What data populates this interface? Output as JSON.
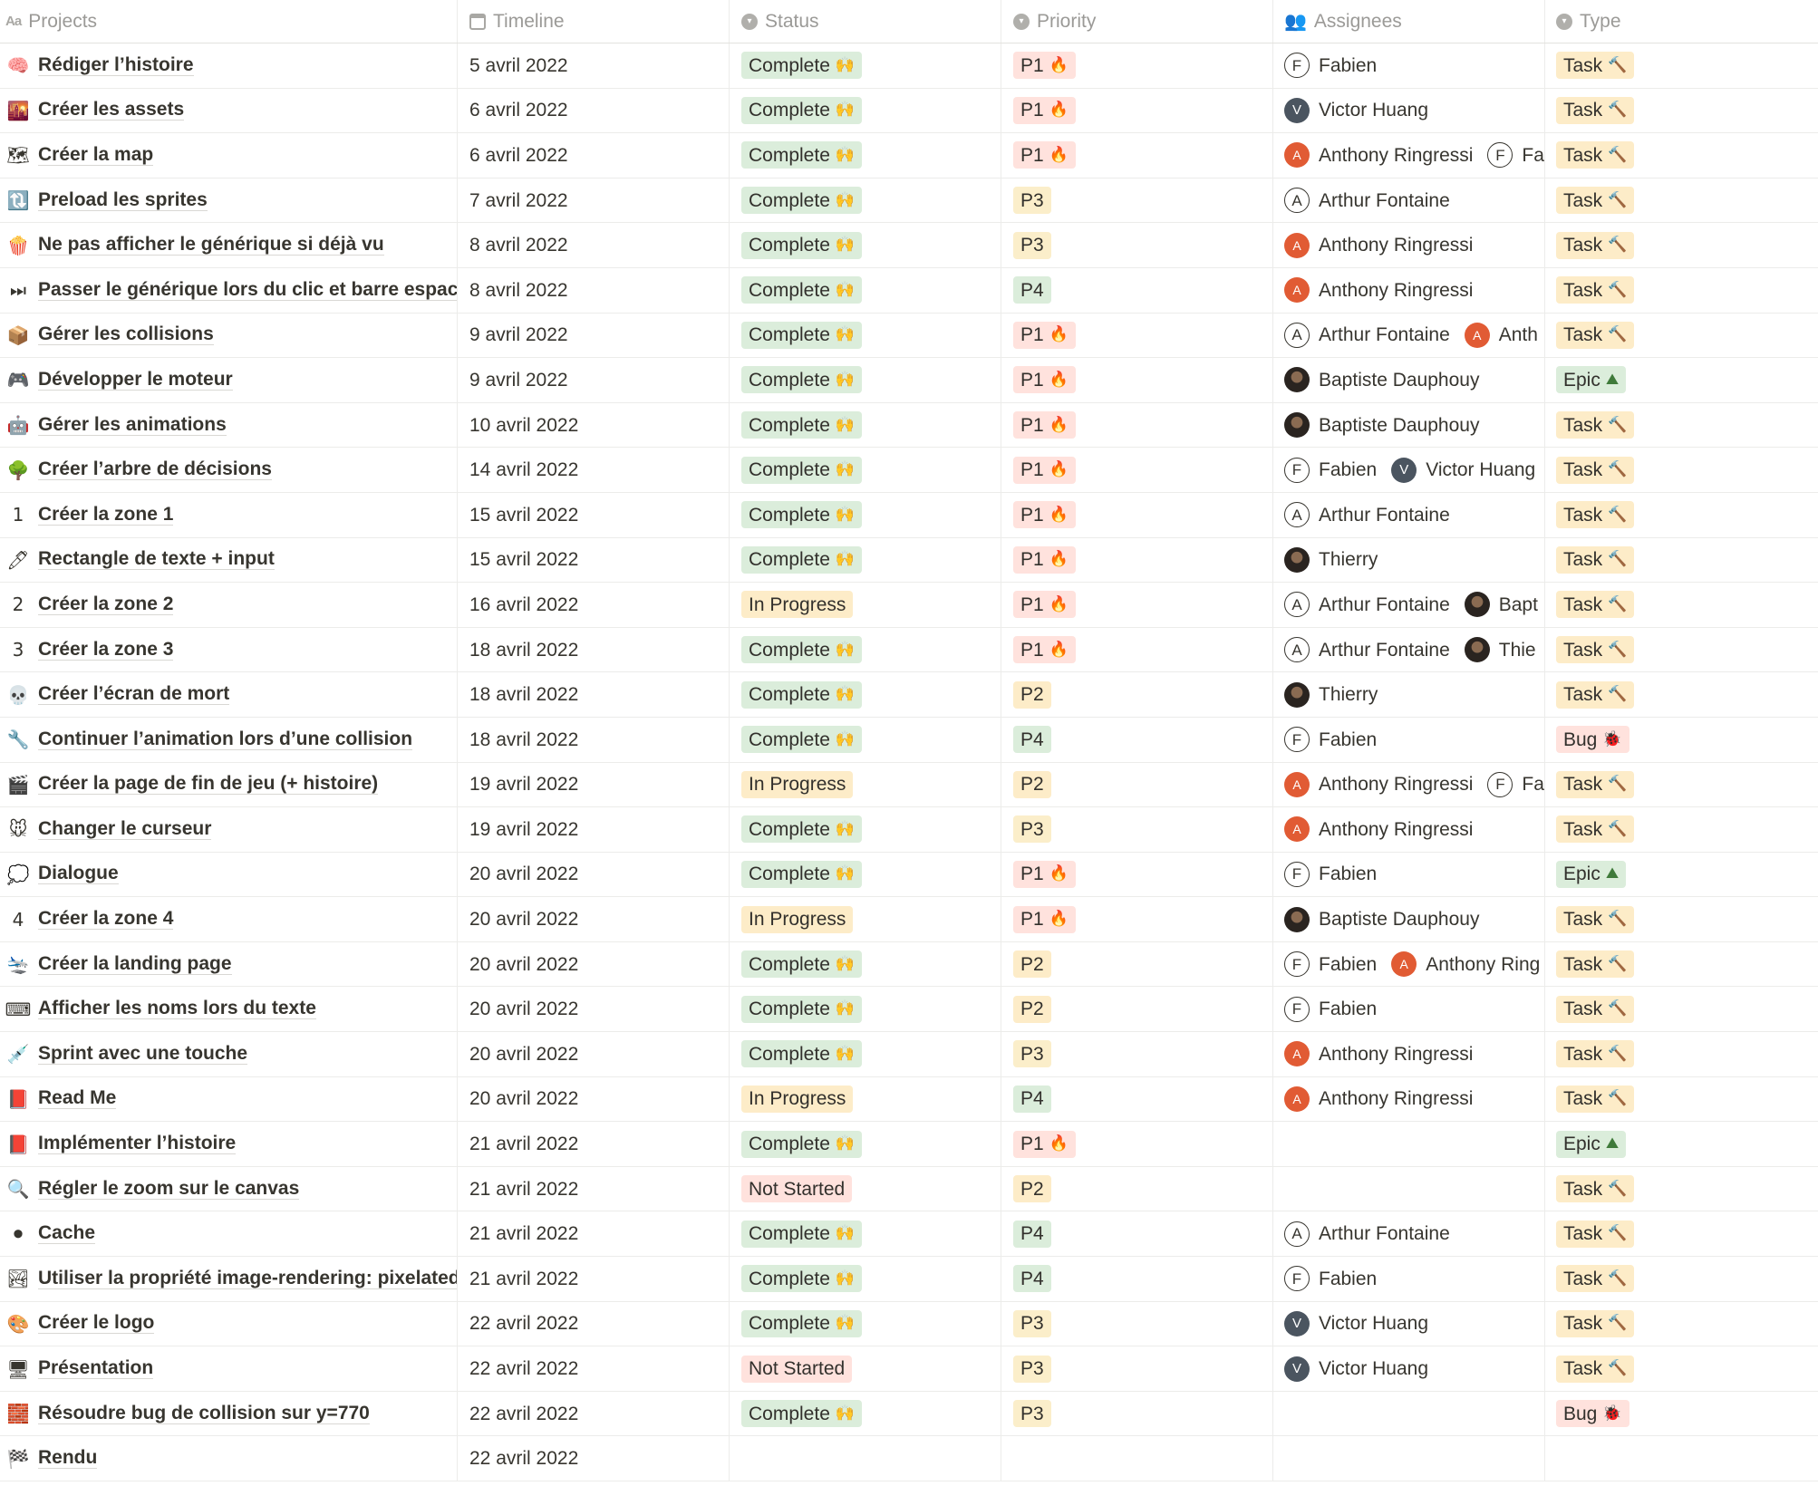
{
  "colors": {
    "status_complete": "#dbeddb",
    "status_in_progress": "#fdecc8",
    "status_not_started": "#ffe2dd",
    "priority_p1": "#ffe2dd",
    "priority_p2": "#fdecc8",
    "priority_p3": "#fbeeca",
    "priority_p4": "#dbeddb",
    "type_task": "#fdecc8",
    "type_epic": "#dbeddb",
    "type_bug": "#ffe2dd"
  },
  "columns": [
    {
      "key": "projects",
      "label": "Projects",
      "icon": "text-property-icon"
    },
    {
      "key": "timeline",
      "label": "Timeline",
      "icon": "calendar-icon"
    },
    {
      "key": "status",
      "label": "Status",
      "icon": "select-property-icon"
    },
    {
      "key": "priority",
      "label": "Priority",
      "icon": "select-property-icon"
    },
    {
      "key": "assignees",
      "label": "Assignees",
      "icon": "people-icon"
    },
    {
      "key": "type",
      "label": "Type",
      "icon": "select-property-icon"
    }
  ],
  "rows": [
    {
      "emoji": "brain-icon",
      "glyph": "🧠",
      "title": "Rédiger l’histoire",
      "timeline": "5 avril 2022",
      "status": "Complete",
      "priority": "P1",
      "assignees": [
        {
          "name": "Fabien",
          "initial": "F",
          "style": "letter"
        }
      ],
      "type": "Task"
    },
    {
      "emoji": "sunset-icon",
      "glyph": "🌇",
      "title": "Créer les assets",
      "timeline": "6 avril 2022",
      "status": "Complete",
      "priority": "P1",
      "assignees": [
        {
          "name": "Victor Huang",
          "initial": "V",
          "style": "slate"
        }
      ],
      "type": "Task"
    },
    {
      "emoji": "map-icon",
      "glyph": "🗺",
      "title": "Créer la map",
      "timeline": "6 avril 2022",
      "status": "Complete",
      "priority": "P1",
      "assignees": [
        {
          "name": "Anthony Ringressi",
          "initial": "A",
          "style": "orange"
        },
        {
          "name": "Fa",
          "initial": "F",
          "style": "letter"
        }
      ],
      "type": "Task"
    },
    {
      "emoji": "reload-icon",
      "glyph": "🔃",
      "title": "Preload les sprites",
      "timeline": "7 avril 2022",
      "status": "Complete",
      "priority": "P3",
      "assignees": [
        {
          "name": "Arthur Fontaine",
          "initial": "A",
          "style": "letter"
        }
      ],
      "type": "Task"
    },
    {
      "emoji": "popcorn-icon",
      "glyph": "🍿",
      "title": "Ne pas afficher le générique si déjà vu",
      "timeline": "8 avril 2022",
      "status": "Complete",
      "priority": "P3",
      "assignees": [
        {
          "name": "Anthony Ringressi",
          "initial": "A",
          "style": "orange"
        }
      ],
      "type": "Task"
    },
    {
      "emoji": "fast-forward-icon",
      "glyph": "⏭",
      "title": "Passer le générique lors du clic et barre espace",
      "timeline": "8 avril 2022",
      "status": "Complete",
      "priority": "P4",
      "assignees": [
        {
          "name": "Anthony Ringressi",
          "initial": "A",
          "style": "orange"
        }
      ],
      "type": "Task"
    },
    {
      "emoji": "package-icon",
      "glyph": "📦",
      "title": "Gérer les collisions",
      "timeline": "9 avril 2022",
      "status": "Complete",
      "priority": "P1",
      "assignees": [
        {
          "name": "Arthur Fontaine",
          "initial": "A",
          "style": "letter"
        },
        {
          "name": "Anth",
          "initial": "A",
          "style": "orange"
        }
      ],
      "type": "Task"
    },
    {
      "emoji": "gamepad-icon",
      "glyph": "🎮",
      "title": "Développer le moteur",
      "timeline": "9 avril 2022",
      "status": "Complete",
      "priority": "P1",
      "assignees": [
        {
          "name": "Baptiste Dauphouy",
          "initial": "",
          "style": "photo"
        }
      ],
      "type": "Epic"
    },
    {
      "emoji": "robot-icon",
      "glyph": "🤖",
      "title": "Gérer les animations",
      "timeline": "10 avril 2022",
      "status": "Complete",
      "priority": "P1",
      "assignees": [
        {
          "name": "Baptiste Dauphouy",
          "initial": "",
          "style": "photo"
        }
      ],
      "type": "Task"
    },
    {
      "emoji": "tree-icon",
      "glyph": "🌳",
      "title": "Créer l’arbre de décisions",
      "timeline": "14 avril 2022",
      "status": "Complete",
      "priority": "P1",
      "assignees": [
        {
          "name": "Fabien",
          "initial": "F",
          "style": "letter"
        },
        {
          "name": "Victor Huang",
          "initial": "V",
          "style": "slate"
        }
      ],
      "type": "Task"
    },
    {
      "emoji": "keycap-1-icon",
      "glyph": "1",
      "title": "Créer la zone 1",
      "timeline": "15 avril 2022",
      "status": "Complete",
      "priority": "P1",
      "assignees": [
        {
          "name": "Arthur Fontaine",
          "initial": "A",
          "style": "letter"
        }
      ],
      "type": "Task"
    },
    {
      "emoji": "pen-icon",
      "glyph": "🖊",
      "title": "Rectangle de texte + input",
      "timeline": "15 avril 2022",
      "status": "Complete",
      "priority": "P1",
      "assignees": [
        {
          "name": "Thierry",
          "initial": "",
          "style": "photo"
        }
      ],
      "type": "Task"
    },
    {
      "emoji": "keycap-2-icon",
      "glyph": "2",
      "title": "Créer la zone 2",
      "timeline": "16 avril 2022",
      "status": "In Progress",
      "priority": "P1",
      "assignees": [
        {
          "name": "Arthur Fontaine",
          "initial": "A",
          "style": "letter"
        },
        {
          "name": "Bapt",
          "initial": "",
          "style": "photo"
        }
      ],
      "type": "Task"
    },
    {
      "emoji": "keycap-3-icon",
      "glyph": "3",
      "title": "Créer la zone 3",
      "timeline": "18 avril 2022",
      "status": "Complete",
      "priority": "P1",
      "assignees": [
        {
          "name": "Arthur Fontaine",
          "initial": "A",
          "style": "letter"
        },
        {
          "name": "Thie",
          "initial": "",
          "style": "photo"
        }
      ],
      "type": "Task"
    },
    {
      "emoji": "skull-icon",
      "glyph": "💀",
      "title": "Créer l’écran de mort",
      "timeline": "18 avril 2022",
      "status": "Complete",
      "priority": "P2",
      "assignees": [
        {
          "name": "Thierry",
          "initial": "",
          "style": "photo"
        }
      ],
      "type": "Task"
    },
    {
      "emoji": "wrench-icon",
      "glyph": "🔧",
      "title": "Continuer l’animation lors d’une collision",
      "timeline": "18 avril 2022",
      "status": "Complete",
      "priority": "P4",
      "assignees": [
        {
          "name": "Fabien",
          "initial": "F",
          "style": "letter"
        }
      ],
      "type": "Bug"
    },
    {
      "emoji": "clapper-icon",
      "glyph": "🎬",
      "title": "Créer la page de fin de jeu (+ histoire)",
      "timeline": "19 avril 2022",
      "status": "In Progress",
      "priority": "P2",
      "assignees": [
        {
          "name": "Anthony Ringressi",
          "initial": "A",
          "style": "orange"
        },
        {
          "name": "Fa",
          "initial": "F",
          "style": "letter"
        }
      ],
      "type": "Task"
    },
    {
      "emoji": "mouse-icon",
      "glyph": "🐭",
      "title": "Changer le curseur",
      "timeline": "19 avril 2022",
      "status": "Complete",
      "priority": "P3",
      "assignees": [
        {
          "name": "Anthony Ringressi",
          "initial": "A",
          "style": "orange"
        }
      ],
      "type": "Task"
    },
    {
      "emoji": "speech-bubble-icon",
      "glyph": "💭",
      "title": "Dialogue",
      "timeline": "20 avril 2022",
      "status": "Complete",
      "priority": "P1",
      "assignees": [
        {
          "name": "Fabien",
          "initial": "F",
          "style": "letter"
        }
      ],
      "type": "Epic"
    },
    {
      "emoji": "keycap-4-icon",
      "glyph": "4",
      "title": "Créer la zone 4",
      "timeline": "20 avril 2022",
      "status": "In Progress",
      "priority": "P1",
      "assignees": [
        {
          "name": "Baptiste Dauphouy",
          "initial": "",
          "style": "photo"
        }
      ],
      "type": "Task"
    },
    {
      "emoji": "airplane-landing-icon",
      "glyph": "🛬",
      "title": "Créer la landing page",
      "timeline": "20 avril 2022",
      "status": "Complete",
      "priority": "P2",
      "assignees": [
        {
          "name": "Fabien",
          "initial": "F",
          "style": "letter"
        },
        {
          "name": "Anthony Ring",
          "initial": "A",
          "style": "orange"
        }
      ],
      "type": "Task"
    },
    {
      "emoji": "keyboard-icon",
      "glyph": "⌨",
      "title": "Afficher les noms lors du texte",
      "timeline": "20 avril 2022",
      "status": "Complete",
      "priority": "P2",
      "assignees": [
        {
          "name": "Fabien",
          "initial": "F",
          "style": "letter"
        }
      ],
      "type": "Task"
    },
    {
      "emoji": "syringe-icon",
      "glyph": "💉",
      "title": "Sprint avec une touche",
      "timeline": "20 avril 2022",
      "status": "Complete",
      "priority": "P3",
      "assignees": [
        {
          "name": "Anthony Ringressi",
          "initial": "A",
          "style": "orange"
        }
      ],
      "type": "Task"
    },
    {
      "emoji": "book-icon",
      "glyph": "📕",
      "title": "Read Me",
      "timeline": "20 avril 2022",
      "status": "In Progress",
      "priority": "P4",
      "assignees": [
        {
          "name": "Anthony Ringressi",
          "initial": "A",
          "style": "orange"
        }
      ],
      "type": "Task"
    },
    {
      "emoji": "book-icon",
      "glyph": "📕",
      "title": "Implémenter l’histoire",
      "timeline": "21 avril 2022",
      "status": "Complete",
      "priority": "P1",
      "assignees": [],
      "type": "Epic"
    },
    {
      "emoji": "magnifier-icon",
      "glyph": "🔍",
      "title": "Régler le zoom sur le canvas",
      "timeline": "21 avril 2022",
      "status": "Not Started",
      "priority": "P2",
      "assignees": [],
      "type": "Task"
    },
    {
      "emoji": "black-circle-icon",
      "glyph": "⚫",
      "title": "Cache",
      "timeline": "21 avril 2022",
      "status": "Complete",
      "priority": "P4",
      "assignees": [
        {
          "name": "Arthur Fontaine",
          "initial": "A",
          "style": "letter"
        }
      ],
      "type": "Task"
    },
    {
      "emoji": "landscape-icon",
      "glyph": "🏞",
      "title": "Utiliser la propriété image-rendering: pixelated",
      "timeline": "21 avril 2022",
      "status": "Complete",
      "priority": "P4",
      "assignees": [
        {
          "name": "Fabien",
          "initial": "F",
          "style": "letter"
        }
      ],
      "type": "Task"
    },
    {
      "emoji": "palette-icon",
      "glyph": "🎨",
      "title": "Créer le logo",
      "timeline": "22 avril 2022",
      "status": "Complete",
      "priority": "P3",
      "assignees": [
        {
          "name": "Victor Huang",
          "initial": "V",
          "style": "slate"
        }
      ],
      "type": "Task"
    },
    {
      "emoji": "projector-icon",
      "glyph": "🖥",
      "title": "Présentation",
      "timeline": "22 avril 2022",
      "status": "Not Started",
      "priority": "P3",
      "assignees": [
        {
          "name": "Victor Huang",
          "initial": "V",
          "style": "slate"
        }
      ],
      "type": "Task"
    },
    {
      "emoji": "bricks-icon",
      "glyph": "🧱",
      "title": "Résoudre bug de collision sur y=770",
      "timeline": "22 avril 2022",
      "status": "Complete",
      "priority": "P3",
      "assignees": [],
      "type": "Bug"
    },
    {
      "emoji": "checkered-flag-icon",
      "glyph": "🏁",
      "title": "Rendu",
      "timeline": "22 avril 2022",
      "status": "",
      "priority": "",
      "assignees": [],
      "type": ""
    }
  ]
}
